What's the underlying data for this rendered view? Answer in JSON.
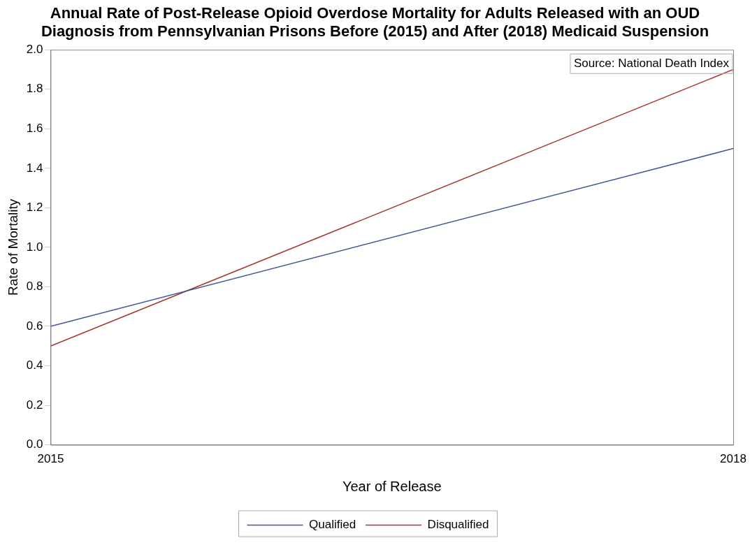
{
  "chart_data": {
    "type": "line",
    "title": "Annual Rate of Post-Release Opioid Overdose Mortality for Adults Released with an OUD Diagnosis from Pennsylvanian Prisons Before (2015) and After (2018) Medicaid Suspension",
    "xlabel": "Year of Release",
    "ylabel": "Rate of Mortality",
    "x": [
      2015,
      2018
    ],
    "series": [
      {
        "name": "Qualified",
        "color": "#445694",
        "values": [
          0.6,
          1.5
        ]
      },
      {
        "name": "Disqualified",
        "color": "#a23a2e",
        "values": [
          0.5,
          1.9
        ]
      }
    ],
    "xlim": [
      2015,
      2018
    ],
    "xticks": [
      2015,
      2018
    ],
    "ylim": [
      0,
      2
    ],
    "yticks": [
      {
        "value": 0,
        "label": "0.0"
      },
      0.2,
      0.4,
      0.6,
      0.8,
      {
        "value": 1,
        "label": "1.0"
      },
      1.2,
      1.4,
      1.6,
      1.8,
      {
        "value": 2,
        "label": "2.0"
      }
    ],
    "grid": false,
    "legend": "bottom",
    "marker": "none",
    "line_style": "solid",
    "annotations": [
      "Source: National Death Index"
    ]
  }
}
